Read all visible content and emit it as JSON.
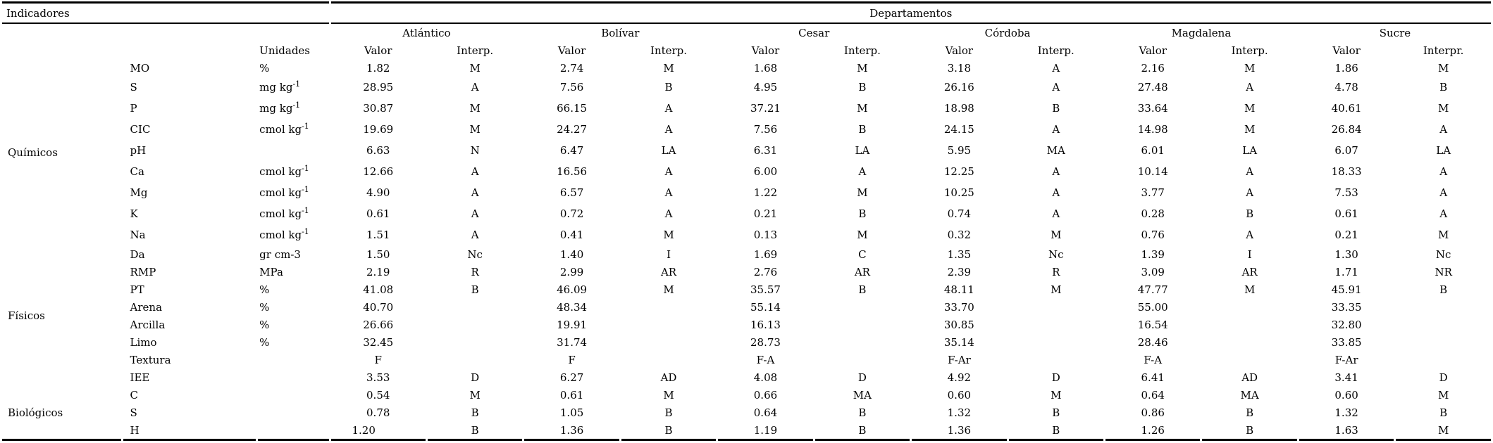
{
  "page": {
    "background_color": "#ffffff",
    "text_color": "#000000"
  },
  "table": {
    "corner_label": "Indicadores",
    "group_label": "Departamentos",
    "units_header": "Unidades",
    "value_header": "Valor",
    "interp_header": "Interp.",
    "interp_header_last": "Interpr.",
    "departments": [
      "Atlántico",
      "Bolívar",
      "Cesar",
      "Córdoba",
      "Magdalena",
      "Sucre"
    ],
    "categories": [
      {
        "label": "Químicos",
        "rows": 9
      },
      {
        "label": "Físicos",
        "rows": 8
      },
      {
        "label": "Biológicos",
        "rows": 3
      }
    ],
    "rows": [
      {
        "indicator": "MO",
        "unit": "%",
        "unit_sup": "",
        "cells": [
          "1.82",
          "M",
          "2.74",
          "M",
          "1.68",
          "M",
          "3.18",
          "A",
          "2.16",
          "M",
          "1.86",
          "M"
        ]
      },
      {
        "indicator": "S",
        "unit": "mg kg",
        "unit_sup": "-1",
        "cells": [
          "28.95",
          "A",
          "7.56",
          "B",
          "4.95",
          "B",
          "26.16",
          "A",
          "27.48",
          "A",
          "4.78",
          "B"
        ]
      },
      {
        "indicator": "P",
        "unit": "mg kg",
        "unit_sup": "-1",
        "cells": [
          "30.87",
          "M",
          "66.15",
          "A",
          "37.21",
          "M",
          "18.98",
          "B",
          "33.64",
          "M",
          "40.61",
          "M"
        ]
      },
      {
        "indicator": "CIC",
        "unit": "cmol kg",
        "unit_sup": "-1",
        "cells": [
          "19.69",
          "M",
          "24.27",
          "A",
          "7.56",
          "B",
          "24.15",
          "A",
          "14.98",
          "M",
          "26.84",
          "A"
        ]
      },
      {
        "indicator": "pH",
        "unit": "",
        "unit_sup": "",
        "cells": [
          "6.63",
          "N",
          "6.47",
          "LA",
          "6.31",
          "LA",
          "5.95",
          "MA",
          "6.01",
          "LA",
          "6.07",
          "LA"
        ]
      },
      {
        "indicator": "Ca",
        "unit": "cmol kg",
        "unit_sup": "-1",
        "cells": [
          "12.66",
          "A",
          "16.56",
          "A",
          "6.00",
          "A",
          "12.25",
          "A",
          "10.14",
          "A",
          "18.33",
          "A"
        ]
      },
      {
        "indicator": "Mg",
        "unit": "cmol kg",
        "unit_sup": "-1",
        "cells": [
          "4.90",
          "A",
          "6.57",
          "A",
          "1.22",
          "M",
          "10.25",
          "A",
          "3.77",
          "A",
          "7.53",
          "A"
        ]
      },
      {
        "indicator": "K",
        "unit": "cmol kg",
        "unit_sup": "-1",
        "cells": [
          "0.61",
          "A",
          "0.72",
          "A",
          "0.21",
          "B",
          "0.74",
          "A",
          "0.28",
          "B",
          "0.61",
          "A"
        ]
      },
      {
        "indicator": "Na",
        "unit": "cmol kg",
        "unit_sup": "-1",
        "cells": [
          "1.51",
          "A",
          "0.41",
          "M",
          "0.13",
          "M",
          "0.32",
          "M",
          "0.76",
          "A",
          "0.21",
          "M"
        ]
      },
      {
        "indicator": "Da",
        "unit": "gr cm-3",
        "unit_sup": "",
        "cells": [
          "1.50",
          "Nc",
          "1.40",
          "I",
          "1.69",
          "C",
          "1.35",
          "Nc",
          "1.39",
          "I",
          "1.30",
          "Nc"
        ]
      },
      {
        "indicator": "RMP",
        "unit": "MPa",
        "unit_sup": "",
        "cells": [
          "2.19",
          "R",
          "2.99",
          "AR",
          "2.76",
          "AR",
          "2.39",
          "R",
          "3.09",
          "AR",
          "1.71",
          "NR"
        ]
      },
      {
        "indicator": "PT",
        "unit": "%",
        "unit_sup": "",
        "cells": [
          "41.08",
          "B",
          "46.09",
          "M",
          "35.57",
          "B",
          "48.11",
          "M",
          "47.77",
          "M",
          "45.91",
          "B"
        ]
      },
      {
        "indicator": "Arena",
        "unit": "%",
        "unit_sup": "",
        "cells": [
          "40.70",
          "",
          "48.34",
          "",
          "55.14",
          "",
          "33.70",
          "",
          "55.00",
          "",
          "33.35",
          ""
        ]
      },
      {
        "indicator": "Arcilla",
        "unit": "%",
        "unit_sup": "",
        "cells": [
          "26.66",
          "",
          "19.91",
          "",
          "16.13",
          "",
          "30.85",
          "",
          "16.54",
          "",
          "32.80",
          ""
        ]
      },
      {
        "indicator": "Limo",
        "unit": "%",
        "unit_sup": "",
        "cells": [
          "32.45",
          "",
          "31.74",
          "",
          "28.73",
          "",
          "35.14",
          "",
          "28.46",
          "",
          "33.85",
          ""
        ]
      },
      {
        "indicator": "Textura",
        "unit": "",
        "unit_sup": "",
        "cells": [
          "F",
          "",
          "F",
          "",
          "F-A",
          "",
          "F-Ar",
          "",
          "F-A",
          "",
          "F-Ar",
          ""
        ]
      },
      {
        "indicator": "IEE",
        "unit": "",
        "unit_sup": "",
        "cells": [
          "3.53",
          "D",
          "6.27",
          "AD",
          "4.08",
          "D",
          "4.92",
          "D",
          "6.41",
          "AD",
          "3.41",
          "D"
        ]
      },
      {
        "indicator": "C",
        "unit": "",
        "unit_sup": "",
        "cells": [
          "0.54",
          "M",
          "0.61",
          "M",
          "0.66",
          "MA",
          "0.60",
          "M",
          "0.64",
          "MA",
          "0.60",
          "M"
        ]
      },
      {
        "indicator": "S",
        "unit": "",
        "unit_sup": "",
        "cells": [
          "0.78",
          "B",
          "1.05",
          "B",
          "0.64",
          "B",
          "1.32",
          "B",
          "0.86",
          "B",
          "1.32",
          "B"
        ]
      },
      {
        "indicator": "H",
        "unit": "",
        "unit_sup": "",
        "cells": [
          "1.20",
          "B",
          "1.36",
          "B",
          "1.19",
          "B",
          "1.36",
          "B",
          "1.26",
          "B",
          "1.63",
          "M"
        ]
      }
    ]
  }
}
